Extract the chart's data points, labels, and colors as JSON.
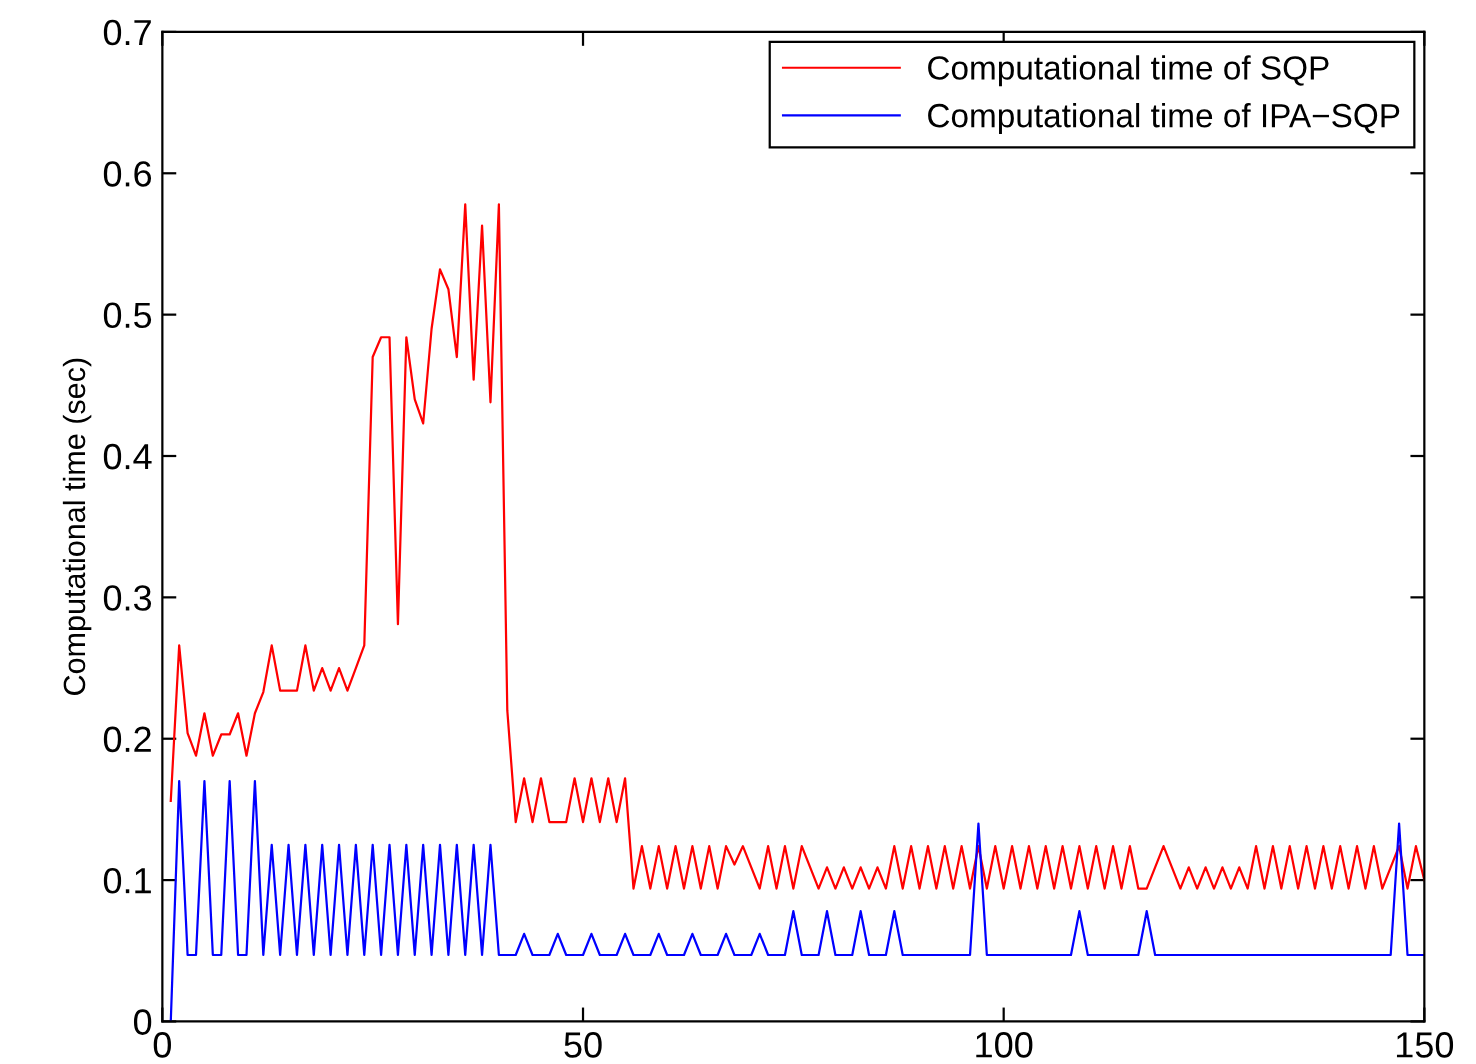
{
  "chart_data": {
    "type": "line",
    "ylabel": "Computational time (sec)",
    "xlim": [
      0,
      150
    ],
    "xticks": [
      0,
      50,
      100,
      150
    ],
    "ylim": [
      0,
      0.7
    ],
    "yticks": [
      0,
      0.1,
      0.2,
      0.3,
      0.4,
      0.5,
      0.6,
      0.7
    ],
    "grid": false,
    "legend": "top right",
    "marker": "none",
    "line_style": "solid",
    "x": [
      1,
      2,
      3,
      4,
      5,
      6,
      7,
      8,
      9,
      10,
      11,
      12,
      13,
      14,
      15,
      16,
      17,
      18,
      19,
      20,
      21,
      22,
      23,
      24,
      25,
      26,
      27,
      28,
      29,
      30,
      31,
      32,
      33,
      34,
      35,
      36,
      37,
      38,
      39,
      40,
      41,
      42,
      43,
      44,
      45,
      46,
      47,
      48,
      49,
      50,
      51,
      52,
      53,
      54,
      55,
      56,
      57,
      58,
      59,
      60,
      61,
      62,
      63,
      64,
      65,
      66,
      67,
      68,
      69,
      70,
      71,
      72,
      73,
      74,
      75,
      76,
      77,
      78,
      79,
      80,
      81,
      82,
      83,
      84,
      85,
      86,
      87,
      88,
      89,
      90,
      91,
      92,
      93,
      94,
      95,
      96,
      97,
      98,
      99,
      100,
      101,
      102,
      103,
      104,
      105,
      106,
      107,
      108,
      109,
      110,
      111,
      112,
      113,
      114,
      115,
      116,
      117,
      118,
      119,
      120,
      121,
      122,
      123,
      124,
      125,
      126,
      127,
      128,
      129,
      130,
      131,
      132,
      133,
      134,
      135,
      136,
      137,
      138,
      139,
      140,
      141,
      142,
      143,
      144,
      145,
      146,
      147,
      148,
      149,
      150
    ],
    "series": [
      {
        "name": "Computational time of SQP",
        "color": "#ff0000",
        "values": [
          0.156,
          0.266,
          0.204,
          0.188,
          0.218,
          0.188,
          0.203,
          0.203,
          0.218,
          0.188,
          0.218,
          0.233,
          0.266,
          0.234,
          0.234,
          0.234,
          0.266,
          0.234,
          0.25,
          0.234,
          0.25,
          0.234,
          0.25,
          0.266,
          0.47,
          0.484,
          0.484,
          0.281,
          0.484,
          0.44,
          0.423,
          0.49,
          0.532,
          0.518,
          0.47,
          0.578,
          0.454,
          0.563,
          0.438,
          0.578,
          0.22,
          0.141,
          0.172,
          0.141,
          0.172,
          0.141,
          0.141,
          0.141,
          0.172,
          0.141,
          0.172,
          0.141,
          0.172,
          0.141,
          0.172,
          0.094,
          0.124,
          0.094,
          0.124,
          0.094,
          0.124,
          0.094,
          0.124,
          0.094,
          0.124,
          0.094,
          0.124,
          0.111,
          0.124,
          0.109,
          0.094,
          0.124,
          0.094,
          0.124,
          0.094,
          0.124,
          0.109,
          0.094,
          0.109,
          0.094,
          0.109,
          0.094,
          0.109,
          0.094,
          0.109,
          0.094,
          0.124,
          0.094,
          0.124,
          0.094,
          0.124,
          0.094,
          0.124,
          0.094,
          0.124,
          0.094,
          0.124,
          0.094,
          0.124,
          0.094,
          0.124,
          0.094,
          0.124,
          0.094,
          0.124,
          0.094,
          0.124,
          0.094,
          0.124,
          0.094,
          0.124,
          0.094,
          0.124,
          0.094,
          0.124,
          0.094,
          0.094,
          0.109,
          0.124,
          0.109,
          0.094,
          0.109,
          0.094,
          0.109,
          0.094,
          0.109,
          0.094,
          0.109,
          0.094,
          0.124,
          0.094,
          0.124,
          0.094,
          0.124,
          0.094,
          0.124,
          0.094,
          0.124,
          0.094,
          0.124,
          0.094,
          0.124,
          0.094,
          0.124,
          0.094,
          0.109,
          0.124,
          0.094,
          0.124,
          0.1
        ]
      },
      {
        "name": "Computational time of IPA−SQP",
        "color": "#0000ff",
        "values": [
          0,
          0.17,
          0.047,
          0.047,
          0.17,
          0.047,
          0.047,
          0.17,
          0.047,
          0.047,
          0.17,
          0.047,
          0.125,
          0.047,
          0.125,
          0.047,
          0.125,
          0.047,
          0.125,
          0.047,
          0.125,
          0.047,
          0.125,
          0.047,
          0.125,
          0.047,
          0.125,
          0.047,
          0.125,
          0.047,
          0.125,
          0.047,
          0.125,
          0.047,
          0.125,
          0.047,
          0.125,
          0.047,
          0.125,
          0.047,
          0.047,
          0.047,
          0.062,
          0.047,
          0.047,
          0.047,
          0.062,
          0.047,
          0.047,
          0.047,
          0.062,
          0.047,
          0.047,
          0.047,
          0.062,
          0.047,
          0.047,
          0.047,
          0.062,
          0.047,
          0.047,
          0.047,
          0.062,
          0.047,
          0.047,
          0.047,
          0.062,
          0.047,
          0.047,
          0.047,
          0.062,
          0.047,
          0.047,
          0.047,
          0.078,
          0.047,
          0.047,
          0.047,
          0.078,
          0.047,
          0.047,
          0.047,
          0.078,
          0.047,
          0.047,
          0.047,
          0.078,
          0.047,
          0.047,
          0.047,
          0.047,
          0.047,
          0.047,
          0.047,
          0.047,
          0.047,
          0.14,
          0.047,
          0.047,
          0.047,
          0.047,
          0.047,
          0.047,
          0.047,
          0.047,
          0.047,
          0.047,
          0.047,
          0.078,
          0.047,
          0.047,
          0.047,
          0.047,
          0.047,
          0.047,
          0.047,
          0.078,
          0.047,
          0.047,
          0.047,
          0.047,
          0.047,
          0.047,
          0.047,
          0.047,
          0.047,
          0.047,
          0.047,
          0.047,
          0.047,
          0.047,
          0.047,
          0.047,
          0.047,
          0.047,
          0.047,
          0.047,
          0.047,
          0.047,
          0.047,
          0.047,
          0.047,
          0.047,
          0.047,
          0.047,
          0.047,
          0.14,
          0.047,
          0.047,
          0.047
        ]
      }
    ]
  }
}
